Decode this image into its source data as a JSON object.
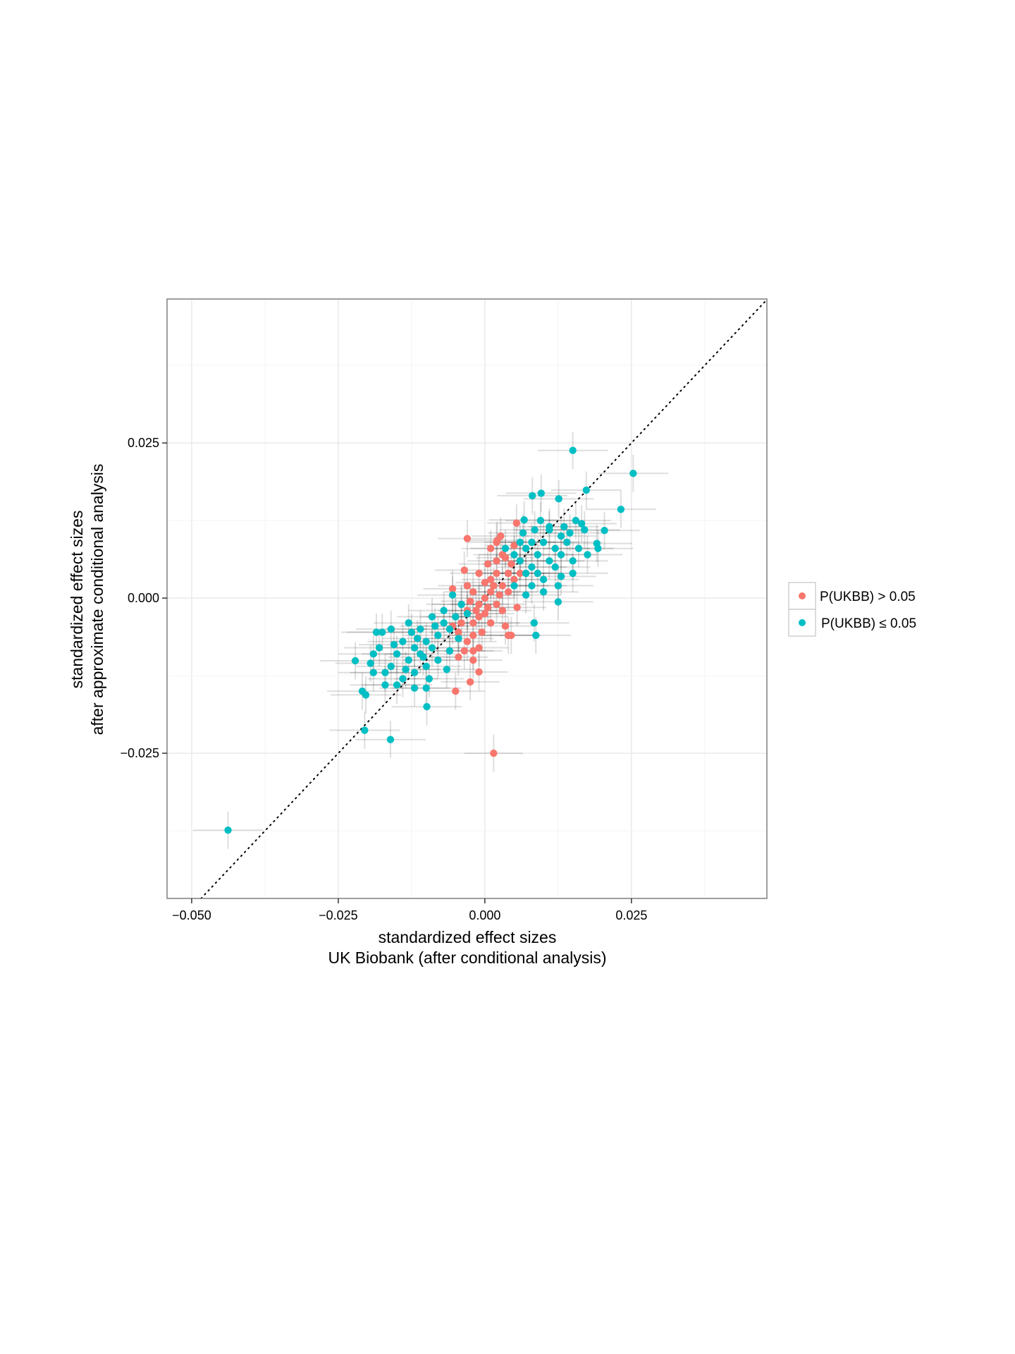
{
  "chart_data": {
    "type": "scatter",
    "title": "",
    "xlabel": [
      "standardized effect sizes",
      "UK Biobank (after conditional analysis)"
    ],
    "ylabel": [
      "standardized effect sizes",
      "after approximate conditional analysis"
    ],
    "xlim": [
      -0.0542,
      0.0481
    ],
    "ylim": [
      -0.0484,
      0.0482
    ],
    "x_ticks": [
      -0.05,
      -0.025,
      0.0,
      0.025
    ],
    "x_tick_labels": [
      "−0.050",
      "−0.025",
      "0.000",
      "0.025"
    ],
    "y_ticks": [
      -0.025,
      0.0,
      0.025
    ],
    "y_tick_labels": [
      "−0.025",
      "0.000",
      "0.025"
    ],
    "grid": true,
    "reference_line": {
      "type": "identity",
      "style": "dotted"
    },
    "legend": {
      "placement": "right",
      "entries": [
        "P(UKBB) > 0.05",
        "P(UKBB) ≤ 0.05"
      ]
    },
    "series": [
      {
        "name": "P(UKBB) > 0.05",
        "color": "#F8766D",
        "x_err": 0.005,
        "y_err": 0.003,
        "points": [
          [
            0.0015,
            -0.025
          ],
          [
            -0.003,
            0.0096
          ],
          [
            -0.005,
            -0.015
          ],
          [
            -0.0025,
            -0.0135
          ],
          [
            -0.001,
            -0.0119
          ],
          [
            0.0054,
            0.0121
          ],
          [
            0.0027,
            0.01
          ],
          [
            0.0021,
            0.0093
          ],
          [
            0,
            0
          ],
          [
            0.001,
            0.001
          ],
          [
            -0.001,
            -0.001
          ],
          [
            0.002,
            -0.001
          ],
          [
            -0.002,
            0.001
          ],
          [
            0.003,
            0.002
          ],
          [
            -0.003,
            -0.002
          ],
          [
            0.001,
            0.003
          ],
          [
            -0.001,
            -0.003
          ],
          [
            0.002,
            0.004
          ],
          [
            -0.002,
            -0.004
          ],
          [
            0.004,
            0.001
          ],
          [
            -0.004,
            -0.001
          ],
          [
            0.003,
            -0.002
          ],
          [
            -0.003,
            0.002
          ],
          [
            0.001,
            -0.004
          ],
          [
            -0.001,
            0.004
          ],
          [
            0.004,
            0.004
          ],
          [
            -0.004,
            -0.004
          ],
          [
            0.005,
            0.003
          ],
          [
            -0.005,
            -0.003
          ],
          [
            0.002,
            0.006
          ],
          [
            -0.002,
            -0.006
          ],
          [
            0.003,
            0.007
          ],
          [
            -0.003,
            -0.007
          ],
          [
            0.0045,
            0.0055
          ],
          [
            -0.0045,
            -0.0055
          ],
          [
            0.0005,
            0.0055
          ],
          [
            -0.0005,
            -0.0055
          ],
          [
            0.0035,
            -0.0045
          ],
          [
            0.0045,
            -0.006
          ],
          [
            0.004,
            -0.006
          ],
          [
            -0.0035,
            0.0045
          ],
          [
            -0.0055,
            0.0015
          ],
          [
            0.0055,
            -0.0015
          ],
          [
            0.0015,
            0.002
          ],
          [
            -0.0015,
            -0.002
          ],
          [
            0.0025,
            0.0005
          ],
          [
            -0.0025,
            -0.0005
          ],
          [
            0.0005,
            -0.0015
          ],
          [
            0.0,
            0.0025
          ],
          [
            0.0,
            -0.0025
          ],
          [
            0.002,
            0.009
          ],
          [
            0.001,
            0.008
          ],
          [
            -0.001,
            -0.008
          ],
          [
            -0.002,
            -0.0085
          ],
          [
            -0.0035,
            -0.0085
          ],
          [
            -0.0045,
            -0.0095
          ],
          [
            -0.002,
            -0.01
          ],
          [
            0.006,
            0.004
          ],
          [
            0.006,
            0.006
          ],
          [
            0.005,
            0.0085
          ],
          [
            -0.0055,
            -0.0045
          ],
          [
            0.0035,
            0.0065
          ]
        ]
      },
      {
        "name": "P(UKBB) ≤ 0.05",
        "color": "#00BFC4",
        "x_err": 0.006,
        "y_err": 0.003,
        "points": [
          [
            -0.0438,
            -0.0374
          ],
          [
            0.015,
            0.0238
          ],
          [
            0.0253,
            0.0201
          ],
          [
            0.0232,
            0.0143
          ],
          [
            0.0173,
            0.0174
          ],
          [
            -0.0161,
            -0.0228
          ],
          [
            -0.0205,
            -0.0213
          ],
          [
            -0.0099,
            -0.0175
          ],
          [
            -0.0221,
            -0.0101
          ],
          [
            -0.0209,
            -0.015
          ],
          [
            -0.0203,
            -0.0156
          ],
          [
            0.0084,
            -0.004
          ],
          [
            0.0087,
            -0.006
          ],
          [
            0.0125,
            -0.0006
          ],
          [
            0.0081,
            0.0165
          ],
          [
            0.0096,
            0.0169
          ],
          [
            0.0126,
            0.016
          ],
          [
            0.0204,
            0.0109
          ],
          [
            0.0193,
            0.008
          ],
          [
            0.0191,
            0.0088
          ],
          [
            0.0067,
            0.0126
          ],
          [
            0.006,
            0.006
          ],
          [
            0.007,
            0.008
          ],
          [
            0.008,
            0.005
          ],
          [
            0.009,
            0.007
          ],
          [
            0.01,
            0.009
          ],
          [
            0.011,
            0.006
          ],
          [
            0.012,
            0.008
          ],
          [
            0.013,
            0.01
          ],
          [
            0.008,
            0.009
          ],
          [
            0.009,
            0.004
          ],
          [
            0.01,
            0.003
          ],
          [
            0.011,
            0.011
          ],
          [
            0.012,
            0.005
          ],
          [
            0.013,
            0.007
          ],
          [
            0.014,
            0.009
          ],
          [
            0.015,
            0.006
          ],
          [
            0.016,
            0.008
          ],
          [
            0.017,
            0.011
          ],
          [
            0.007,
            0.004
          ],
          [
            0.006,
            0.009
          ],
          [
            0.0065,
            0.0105
          ],
          [
            0.0085,
            0.011
          ],
          [
            0.0095,
            0.0125
          ],
          [
            0.011,
            0.0115
          ],
          [
            0.0135,
            0.0115
          ],
          [
            0.0145,
            0.0105
          ],
          [
            0.0155,
            0.0125
          ],
          [
            0.0165,
            0.012
          ],
          [
            0.0175,
            0.007
          ],
          [
            0.015,
            0.004
          ],
          [
            0.013,
            0.0035
          ],
          [
            0.0125,
            0.002
          ],
          [
            0.01,
            0.001
          ],
          [
            0.008,
            0.002
          ],
          [
            0.007,
            0.0005
          ],
          [
            0.005,
            0.002
          ],
          [
            0.005,
            0.007
          ],
          [
            0.0035,
            0.008
          ],
          [
            -0.005,
            -0.003
          ],
          [
            -0.006,
            -0.005
          ],
          [
            -0.007,
            -0.004
          ],
          [
            -0.008,
            -0.006
          ],
          [
            -0.009,
            -0.008
          ],
          [
            -0.01,
            -0.007
          ],
          [
            -0.011,
            -0.009
          ],
          [
            -0.012,
            -0.008
          ],
          [
            -0.013,
            -0.01
          ],
          [
            -0.014,
            -0.007
          ],
          [
            -0.015,
            -0.009
          ],
          [
            -0.016,
            -0.011
          ],
          [
            -0.017,
            -0.012
          ],
          [
            -0.018,
            -0.008
          ],
          [
            -0.019,
            -0.009
          ],
          [
            -0.0175,
            -0.0055
          ],
          [
            -0.0185,
            -0.0055
          ],
          [
            -0.016,
            -0.005
          ],
          [
            -0.013,
            -0.004
          ],
          [
            -0.011,
            -0.005
          ],
          [
            -0.009,
            -0.003
          ],
          [
            -0.007,
            -0.002
          ],
          [
            -0.0055,
            0.0005
          ],
          [
            -0.006,
            -0.0085
          ],
          [
            -0.008,
            -0.01
          ],
          [
            -0.01,
            -0.011
          ],
          [
            -0.012,
            -0.012
          ],
          [
            -0.014,
            -0.013
          ],
          [
            -0.015,
            -0.014
          ],
          [
            -0.017,
            -0.014
          ],
          [
            -0.019,
            -0.012
          ],
          [
            -0.0195,
            -0.0105
          ],
          [
            -0.0095,
            -0.013
          ],
          [
            -0.01,
            -0.0145
          ],
          [
            -0.012,
            -0.0145
          ],
          [
            -0.0135,
            -0.0115
          ],
          [
            -0.0155,
            -0.0075
          ],
          [
            -0.0115,
            -0.0065
          ],
          [
            -0.0085,
            -0.0045
          ],
          [
            -0.0045,
            -0.0065
          ],
          [
            -0.004,
            -0.001
          ],
          [
            -0.003,
            -0.0025
          ],
          [
            -0.0065,
            -0.0115
          ],
          [
            -0.0105,
            -0.0095
          ],
          [
            -0.0125,
            -0.0055
          ]
        ]
      }
    ]
  }
}
